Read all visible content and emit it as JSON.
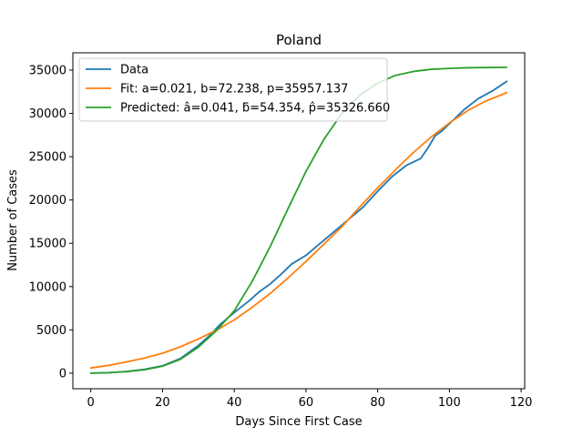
{
  "chart_data": {
    "type": "line",
    "title": "Poland",
    "xlabel": "Days Since First Case",
    "ylabel": "Number of Cases",
    "xlim": [
      -5,
      121
    ],
    "ylim": [
      -1800,
      37000
    ],
    "xticks": [
      0,
      20,
      40,
      60,
      80,
      100,
      120
    ],
    "yticks": [
      0,
      5000,
      10000,
      15000,
      20000,
      25000,
      30000,
      35000
    ],
    "grid": false,
    "legend": "top-left",
    "series": [
      {
        "name": "Data",
        "color": "#1f77b4",
        "x": [
          0,
          5,
          10,
          15,
          20,
          25,
          30,
          33,
          36,
          40,
          44,
          47,
          50,
          53,
          56,
          60,
          64,
          68,
          72,
          76,
          80,
          84,
          88,
          92,
          94,
          96,
          98,
          100,
          104,
          108,
          112,
          116
        ],
        "y": [
          0,
          50,
          200,
          450,
          850,
          1700,
          3200,
          4300,
          5600,
          7000,
          8300,
          9400,
          10300,
          11400,
          12600,
          13600,
          15000,
          16400,
          17800,
          19200,
          21000,
          22700,
          24000,
          24800,
          26000,
          27400,
          28000,
          28800,
          30400,
          31700,
          32600,
          33700
        ]
      },
      {
        "name": "Fit: a=0.021, b=72.238, p=35957.137",
        "color": "#ff7f0e",
        "x": [
          0,
          5,
          10,
          15,
          20,
          25,
          30,
          35,
          40,
          45,
          50,
          55,
          60,
          65,
          70,
          75,
          80,
          85,
          90,
          95,
          100,
          105,
          110,
          116
        ],
        "y": [
          600,
          900,
          1300,
          1750,
          2300,
          3050,
          3950,
          4950,
          6150,
          7600,
          9200,
          11000,
          12900,
          14900,
          16900,
          19200,
          21400,
          23500,
          25500,
          27300,
          28900,
          30300,
          31400,
          32400
        ]
      },
      {
        "name": "Predicted: â=0.041, ƃ=54.354, p̂=35326.660",
        "color": "#2ca02c",
        "x": [
          0,
          5,
          10,
          15,
          20,
          25,
          30,
          35,
          40,
          45,
          50,
          55,
          60,
          65,
          70,
          75,
          80,
          85,
          90,
          95,
          100,
          105,
          110,
          116
        ],
        "y": [
          0,
          60,
          180,
          400,
          800,
          1600,
          3000,
          4900,
          7200,
          10600,
          14600,
          19000,
          23300,
          27000,
          30000,
          32100,
          33500,
          34400,
          34850,
          35100,
          35200,
          35270,
          35300,
          35320
        ]
      }
    ]
  }
}
